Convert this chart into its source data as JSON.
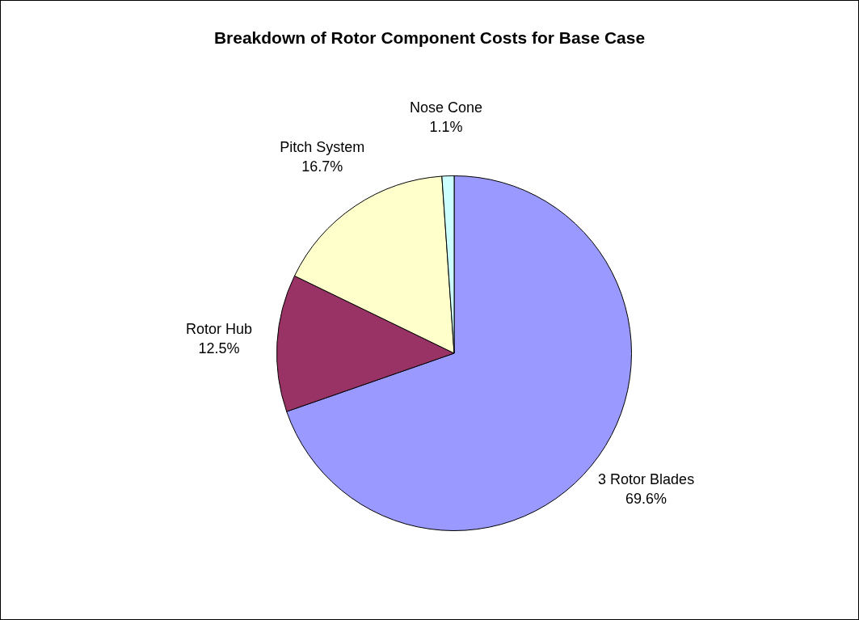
{
  "chart_data": {
    "type": "pie",
    "title": "Breakdown of Rotor Component Costs for Base Case",
    "categories": [
      "3 Rotor Blades",
      "Rotor Hub",
      "Pitch System",
      "Nose Cone"
    ],
    "values": [
      69.6,
      12.5,
      16.7,
      1.1
    ],
    "colors": [
      "#9999ff",
      "#993366",
      "#ffffcc",
      "#ccffff"
    ],
    "value_labels": [
      "69.6%",
      "12.5%",
      "16.7%",
      "1.1%"
    ],
    "legend": false
  }
}
